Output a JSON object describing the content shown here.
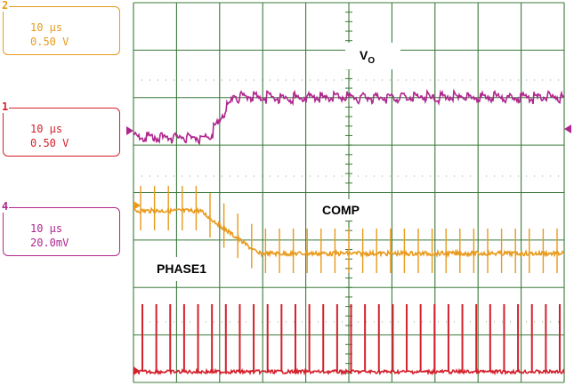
{
  "channels": [
    {
      "id": "ch2",
      "number": "2",
      "time_div": "10 µs",
      "volts_div": "0.50 V",
      "color": "#e89a1c"
    },
    {
      "id": "ch1",
      "number": "1",
      "time_div": "10 µs",
      "volts_div": "0.50 V",
      "color": "#d3212c"
    },
    {
      "id": "ch4",
      "number": "4",
      "time_div": "10 µs",
      "volts_div": "20.0mV",
      "color": "#b0268e"
    }
  ],
  "chart_data": {
    "type": "line",
    "grid": true,
    "x_divisions": 10,
    "y_divisions": 8,
    "series": [
      {
        "name": "VO",
        "channel": "4",
        "color": "#b0268e",
        "description_levels": {
          "before_step_div": 1.6,
          "after_step_div": 1.0,
          "step_time_div": 0.95
        }
      },
      {
        "name": "COMP",
        "channel": "2",
        "color": "#e89a1c",
        "description_levels": {
          "before_step_div": 1.6,
          "after_step_div": 2.1,
          "step_time_div": 1.0
        }
      },
      {
        "name": "PHASE1",
        "channel": "1",
        "color": "#d3212c",
        "pulse_count": 31
      }
    ],
    "labels": {
      "vo": "V",
      "vo_sub": "O",
      "comp": "COMP",
      "phase1": "PHASE1"
    }
  }
}
